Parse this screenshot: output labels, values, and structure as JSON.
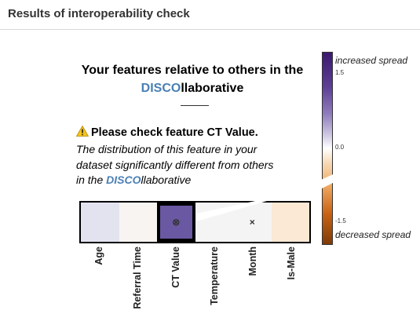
{
  "header": {
    "title": "Results of interoperability check"
  },
  "panel": {
    "title_line1": "Your features relative to others in the",
    "brand_disco": "DISCO",
    "brand_rest": "llaborative",
    "warning_text": "Please check feature CT Value.",
    "desc_lines": [
      "The distribution of this feature in your",
      "dataset significantly different from others",
      "in the "
    ]
  },
  "heatmap": {
    "features": [
      "Age",
      "Referral Time",
      "CT Value",
      "Temperature",
      "Month",
      "Is-Male"
    ],
    "colors": [
      "#e3e3f0",
      "#f7f4f2",
      "#6a58a2",
      "#f4f4f5",
      "#f4f4f5",
      "#fbe8d5"
    ],
    "markers": [
      "",
      "",
      "⊗",
      "",
      "×",
      ""
    ],
    "selected": "CT Value"
  },
  "colorbar": {
    "top_label": "increased spread",
    "bottom_label": "decreased spread",
    "ticks": [
      "1.5",
      "0.0",
      "-1.5"
    ],
    "color_top": "#3b1a6e",
    "color_mid": "#ffffff",
    "color_bottom": "#7f3b08"
  },
  "icons": {
    "warning": "warning-icon"
  },
  "colors": {
    "brand_disco": "#4a7fb5",
    "warning_yellow": "#f5c518"
  }
}
